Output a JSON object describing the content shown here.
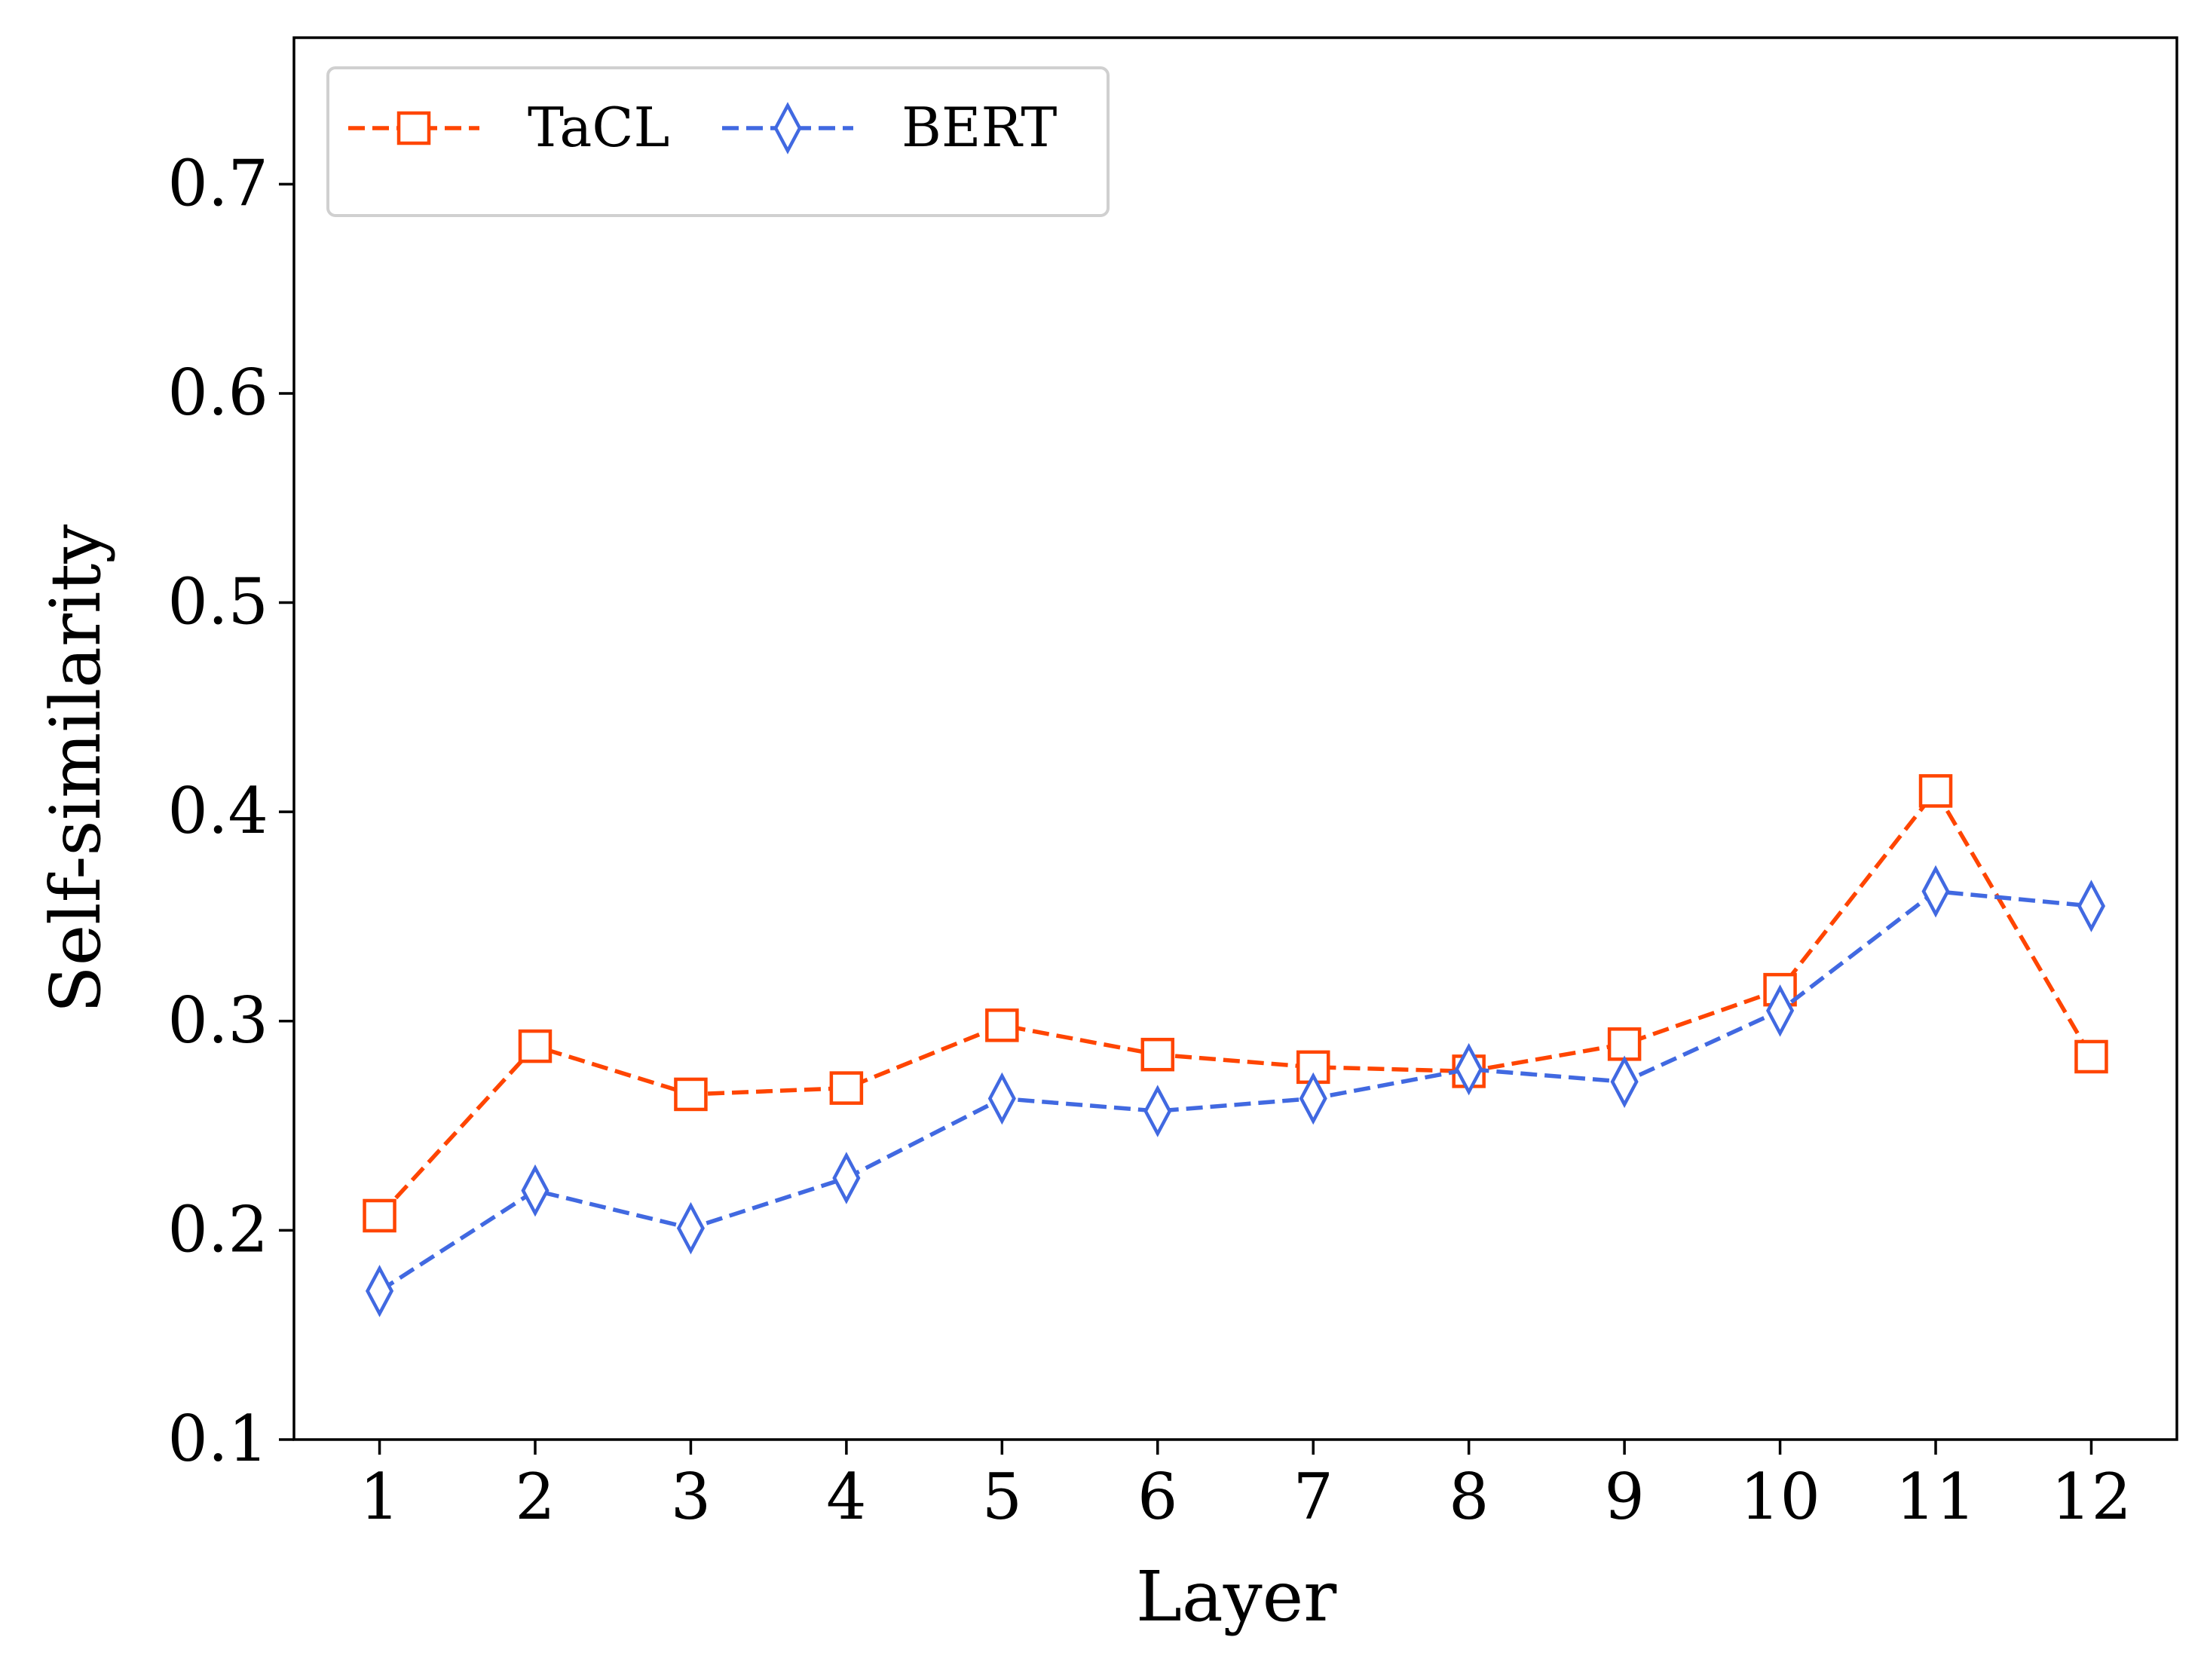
{
  "chart_data": {
    "type": "line",
    "title": "",
    "xlabel": "Layer",
    "ylabel": "Self-similarity",
    "categories": [
      "1",
      "2",
      "3",
      "4",
      "5",
      "6",
      "7",
      "8",
      "9",
      "10",
      "11",
      "12"
    ],
    "x": [
      1,
      2,
      3,
      4,
      5,
      6,
      7,
      8,
      9,
      10,
      11,
      12
    ],
    "xlim": [
      0.45,
      12.55
    ],
    "ylim": [
      0.1,
      0.77
    ],
    "yticks": [
      0.1,
      0.2,
      0.3,
      0.4,
      0.5,
      0.6,
      0.7
    ],
    "ytick_labels": [
      "0.1",
      "0.2",
      "0.3",
      "0.4",
      "0.5",
      "0.6",
      "0.7"
    ],
    "grid": false,
    "legend": {
      "placement": "top-left",
      "columns": 2
    },
    "series": [
      {
        "name": "TaCL",
        "marker": "square",
        "line_style": "dashed",
        "color": "#FF4500",
        "values": [
          0.207,
          0.288,
          0.265,
          0.268,
          0.298,
          0.284,
          0.278,
          0.276,
          0.289,
          0.315,
          0.41,
          0.283
        ]
      },
      {
        "name": "BERT",
        "marker": "thin-diamond",
        "line_style": "dashed",
        "color": "#4169E1",
        "values": [
          0.171,
          0.219,
          0.201,
          0.225,
          0.263,
          0.257,
          0.263,
          0.277,
          0.271,
          0.305,
          0.362,
          0.355
        ]
      }
    ]
  }
}
